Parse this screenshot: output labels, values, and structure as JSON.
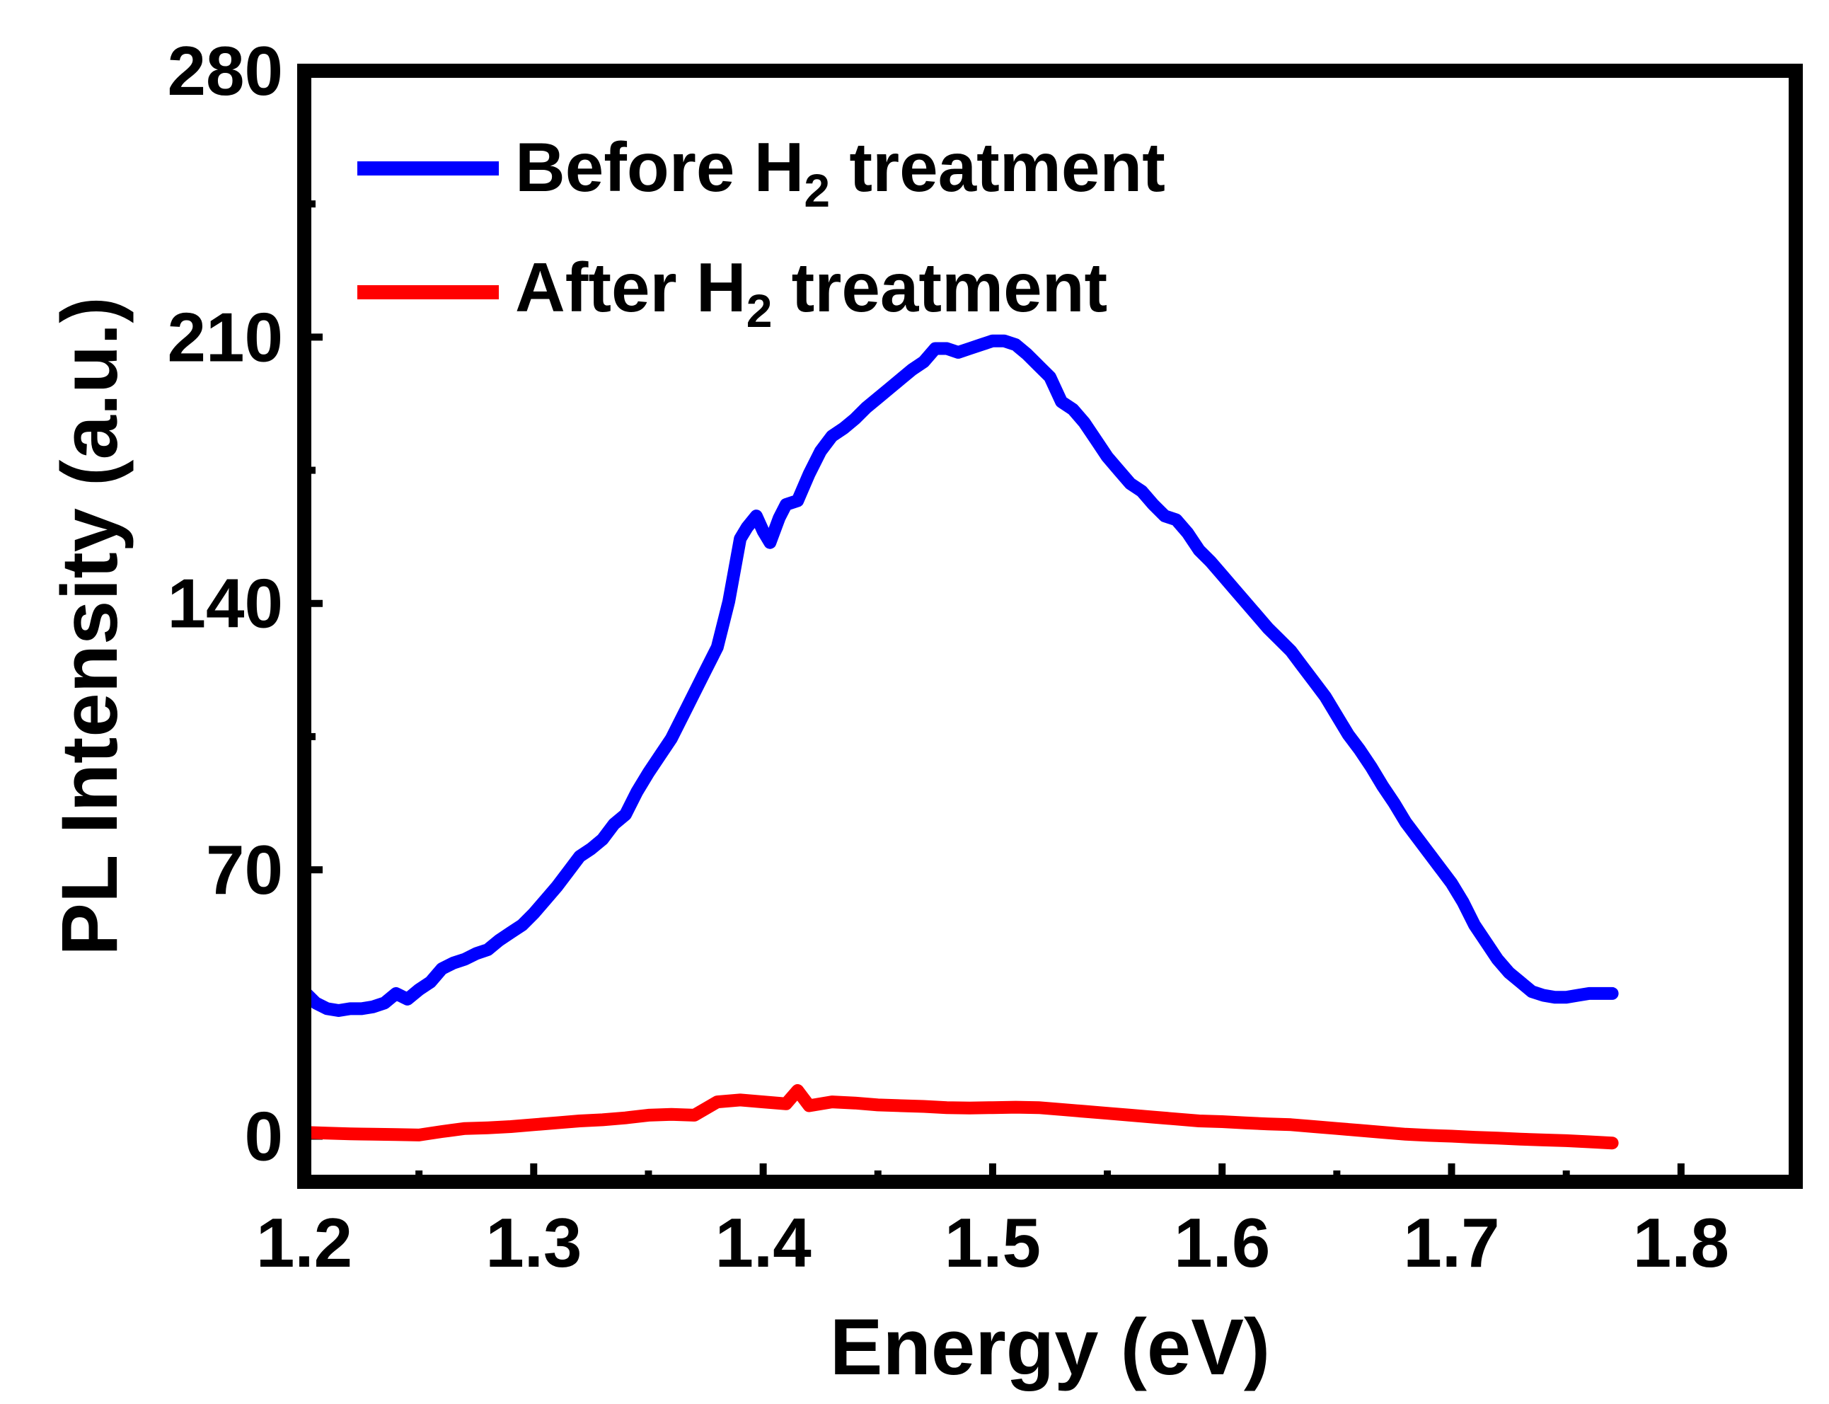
{
  "chart_data": {
    "type": "line",
    "title": "",
    "xlabel": "Energy (eV)",
    "ylabel": "PL Intensity (a.u.)",
    "xlim": [
      1.2,
      1.85
    ],
    "ylim": [
      -12,
      280
    ],
    "x_ticks": [
      1.2,
      1.3,
      1.4,
      1.5,
      1.6,
      1.7,
      1.8
    ],
    "x_tick_labels": [
      "1.2",
      "1.3",
      "1.4",
      "1.5",
      "1.6",
      "1.7",
      "1.8"
    ],
    "y_ticks": [
      0,
      70,
      140,
      210,
      280
    ],
    "y_tick_labels": [
      "0",
      "70",
      "140",
      "210",
      "280"
    ],
    "y_minor_ticks": [
      35,
      105,
      175,
      245
    ],
    "grid": false,
    "legend_position": "top-left",
    "legend_entries": [
      {
        "text": "Before H",
        "sub": "2",
        "suffix": " treatment"
      },
      {
        "text": "After H",
        "sub": "2",
        "suffix": " treatment"
      }
    ],
    "series": [
      {
        "color": "#0000ff",
        "points": [
          [
            1.2,
            38
          ],
          [
            1.205,
            35
          ],
          [
            1.21,
            33.5
          ],
          [
            1.215,
            33
          ],
          [
            1.22,
            33.5
          ],
          [
            1.225,
            33.5
          ],
          [
            1.23,
            34
          ],
          [
            1.235,
            35
          ],
          [
            1.24,
            37.5
          ],
          [
            1.245,
            36
          ],
          [
            1.25,
            38.5
          ],
          [
            1.255,
            40.5
          ],
          [
            1.26,
            44
          ],
          [
            1.265,
            45.5
          ],
          [
            1.27,
            46.5
          ],
          [
            1.275,
            48
          ],
          [
            1.28,
            49
          ],
          [
            1.285,
            51.5
          ],
          [
            1.29,
            53.5
          ],
          [
            1.295,
            55.5
          ],
          [
            1.3,
            58.5
          ],
          [
            1.305,
            62
          ],
          [
            1.31,
            65.5
          ],
          [
            1.315,
            69.5
          ],
          [
            1.32,
            73.5
          ],
          [
            1.325,
            75.5
          ],
          [
            1.33,
            78
          ],
          [
            1.335,
            82
          ],
          [
            1.34,
            84.5
          ],
          [
            1.345,
            90.5
          ],
          [
            1.35,
            95.5
          ],
          [
            1.355,
            100
          ],
          [
            1.36,
            104.5
          ],
          [
            1.365,
            110.5
          ],
          [
            1.37,
            116.5
          ],
          [
            1.375,
            122.5
          ],
          [
            1.38,
            128.5
          ],
          [
            1.385,
            140.5
          ],
          [
            1.39,
            157
          ],
          [
            1.393,
            160
          ],
          [
            1.397,
            163
          ],
          [
            1.4,
            159
          ],
          [
            1.403,
            156
          ],
          [
            1.407,
            162.5
          ],
          [
            1.41,
            166
          ],
          [
            1.415,
            167
          ],
          [
            1.42,
            174
          ],
          [
            1.425,
            180
          ],
          [
            1.43,
            184
          ],
          [
            1.435,
            186
          ],
          [
            1.44,
            188.5
          ],
          [
            1.445,
            191.5
          ],
          [
            1.45,
            194
          ],
          [
            1.455,
            196.5
          ],
          [
            1.46,
            199
          ],
          [
            1.465,
            201.5
          ],
          [
            1.47,
            203.5
          ],
          [
            1.475,
            207
          ],
          [
            1.48,
            207
          ],
          [
            1.485,
            206
          ],
          [
            1.49,
            207
          ],
          [
            1.495,
            208
          ],
          [
            1.5,
            209
          ],
          [
            1.505,
            209
          ],
          [
            1.51,
            208
          ],
          [
            1.515,
            205.5
          ],
          [
            1.52,
            202.5
          ],
          [
            1.525,
            199.5
          ],
          [
            1.53,
            193
          ],
          [
            1.535,
            191
          ],
          [
            1.54,
            187.5
          ],
          [
            1.545,
            183
          ],
          [
            1.55,
            178.5
          ],
          [
            1.555,
            175
          ],
          [
            1.56,
            171.5
          ],
          [
            1.565,
            169.5
          ],
          [
            1.57,
            166
          ],
          [
            1.575,
            163
          ],
          [
            1.58,
            162
          ],
          [
            1.585,
            158.5
          ],
          [
            1.59,
            154
          ],
          [
            1.595,
            151
          ],
          [
            1.6,
            147.5
          ],
          [
            1.605,
            144
          ],
          [
            1.61,
            140.5
          ],
          [
            1.615,
            137
          ],
          [
            1.62,
            133.5
          ],
          [
            1.625,
            130.5
          ],
          [
            1.63,
            127.5
          ],
          [
            1.635,
            123.5
          ],
          [
            1.64,
            119.5
          ],
          [
            1.645,
            115.5
          ],
          [
            1.65,
            110.5
          ],
          [
            1.655,
            105.5
          ],
          [
            1.66,
            101.5
          ],
          [
            1.665,
            97
          ],
          [
            1.67,
            92
          ],
          [
            1.675,
            87.5
          ],
          [
            1.68,
            82.5
          ],
          [
            1.685,
            78.5
          ],
          [
            1.69,
            74.5
          ],
          [
            1.695,
            70.5
          ],
          [
            1.7,
            66.5
          ],
          [
            1.705,
            61.5
          ],
          [
            1.71,
            55.5
          ],
          [
            1.715,
            51
          ],
          [
            1.72,
            46.5
          ],
          [
            1.725,
            43
          ],
          [
            1.73,
            40.5
          ],
          [
            1.735,
            38
          ],
          [
            1.74,
            37
          ],
          [
            1.745,
            36.5
          ],
          [
            1.75,
            36.5
          ],
          [
            1.755,
            37
          ],
          [
            1.76,
            37.5
          ],
          [
            1.765,
            37.5
          ],
          [
            1.77,
            37.5
          ]
        ]
      },
      {
        "color": "#ff0000",
        "points": [
          [
            1.2,
            1
          ],
          [
            1.21,
            0.8
          ],
          [
            1.22,
            0.6
          ],
          [
            1.23,
            0.5
          ],
          [
            1.24,
            0.4
          ],
          [
            1.25,
            0.3
          ],
          [
            1.26,
            1.2
          ],
          [
            1.27,
            2
          ],
          [
            1.28,
            2.2
          ],
          [
            1.29,
            2.5
          ],
          [
            1.3,
            3
          ],
          [
            1.31,
            3.5
          ],
          [
            1.32,
            4
          ],
          [
            1.33,
            4.3
          ],
          [
            1.34,
            4.8
          ],
          [
            1.35,
            5.5
          ],
          [
            1.36,
            5.7
          ],
          [
            1.37,
            5.5
          ],
          [
            1.38,
            9
          ],
          [
            1.39,
            9.5
          ],
          [
            1.4,
            9
          ],
          [
            1.41,
            8.5
          ],
          [
            1.415,
            12
          ],
          [
            1.42,
            8
          ],
          [
            1.43,
            9
          ],
          [
            1.44,
            8.7
          ],
          [
            1.45,
            8.2
          ],
          [
            1.46,
            8
          ],
          [
            1.47,
            7.8
          ],
          [
            1.48,
            7.5
          ],
          [
            1.49,
            7.4
          ],
          [
            1.5,
            7.5
          ],
          [
            1.51,
            7.6
          ],
          [
            1.52,
            7.5
          ],
          [
            1.53,
            7
          ],
          [
            1.54,
            6.5
          ],
          [
            1.55,
            6
          ],
          [
            1.56,
            5.5
          ],
          [
            1.57,
            5
          ],
          [
            1.58,
            4.5
          ],
          [
            1.59,
            4
          ],
          [
            1.6,
            3.8
          ],
          [
            1.61,
            3.5
          ],
          [
            1.62,
            3.2
          ],
          [
            1.63,
            3
          ],
          [
            1.64,
            2.5
          ],
          [
            1.65,
            2
          ],
          [
            1.66,
            1.5
          ],
          [
            1.67,
            1
          ],
          [
            1.68,
            0.5
          ],
          [
            1.69,
            0.2
          ],
          [
            1.7,
            0
          ],
          [
            1.71,
            -0.3
          ],
          [
            1.72,
            -0.5
          ],
          [
            1.73,
            -0.8
          ],
          [
            1.74,
            -1
          ],
          [
            1.75,
            -1.2
          ],
          [
            1.76,
            -1.5
          ],
          [
            1.77,
            -1.8
          ]
        ]
      }
    ]
  }
}
